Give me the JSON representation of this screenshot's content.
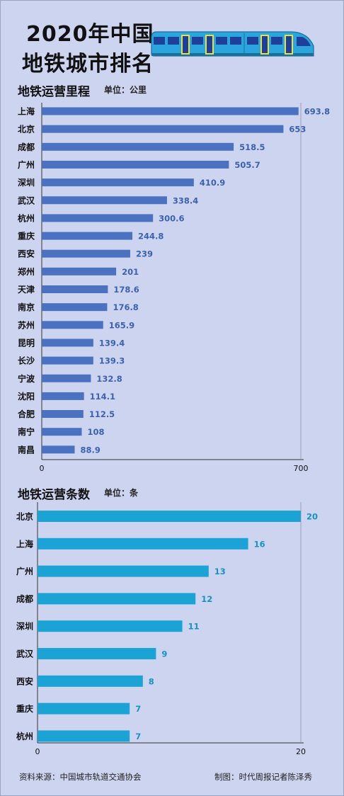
{
  "title": {
    "line1": "2020年中国",
    "line2": "地铁城市排名"
  },
  "chart_data": [
    {
      "type": "bar",
      "orientation": "horizontal",
      "title": "地铁运营里程",
      "unit": "单位：公里",
      "categories": [
        "上海",
        "北京",
        "成都",
        "广州",
        "深圳",
        "武汉",
        "杭州",
        "重庆",
        "西安",
        "郑州",
        "天津",
        "南京",
        "苏州",
        "昆明",
        "长沙",
        "宁波",
        "沈阳",
        "合肥",
        "南宁",
        "南昌"
      ],
      "values": [
        693.8,
        653,
        518.5,
        505.7,
        410.9,
        338.4,
        300.6,
        244.8,
        239,
        201,
        178.6,
        176.8,
        165.9,
        139.4,
        139.3,
        132.8,
        114.1,
        112.5,
        108,
        88.9
      ],
      "value_labels": [
        "693.8",
        "653",
        "518.5",
        "505.7",
        "410.9",
        "338.4",
        "300.6",
        "244.8",
        "239",
        "201",
        "178.6",
        "176.8",
        "165.9",
        "139.4",
        "139.3",
        "132.8",
        "114.1",
        "112.5",
        "108",
        "88.9"
      ],
      "xlim": [
        0,
        700
      ],
      "xticks": [
        "0",
        "700"
      ],
      "bar_color": "#4a72c0",
      "label_color": "#3a62b0"
    },
    {
      "type": "bar",
      "orientation": "horizontal",
      "title": "地铁运营条数",
      "unit": "单位：条",
      "categories": [
        "北京",
        "上海",
        "广州",
        "成都",
        "深圳",
        "武汉",
        "西安",
        "重庆",
        "杭州"
      ],
      "values": [
        20,
        16,
        13,
        12,
        11,
        9,
        8,
        7,
        7
      ],
      "value_labels": [
        "20",
        "16",
        "13",
        "12",
        "11",
        "9",
        "8",
        "7",
        "7"
      ],
      "xlim": [
        0,
        20
      ],
      "xticks": [
        "0",
        "20"
      ],
      "bar_color": "#1ba3d6",
      "label_color": "#1693c6"
    }
  ],
  "footer": {
    "source": "资料来源：中国城市轨道交通协会",
    "credit": "制图：时代周报记者陈泽秀"
  },
  "colors": {
    "background": "#cdd4ef",
    "train_body": "#2aa5dd",
    "train_window": "#1f3f9a",
    "train_door": "#e8e23a"
  },
  "icons": {
    "train": "train-icon"
  }
}
